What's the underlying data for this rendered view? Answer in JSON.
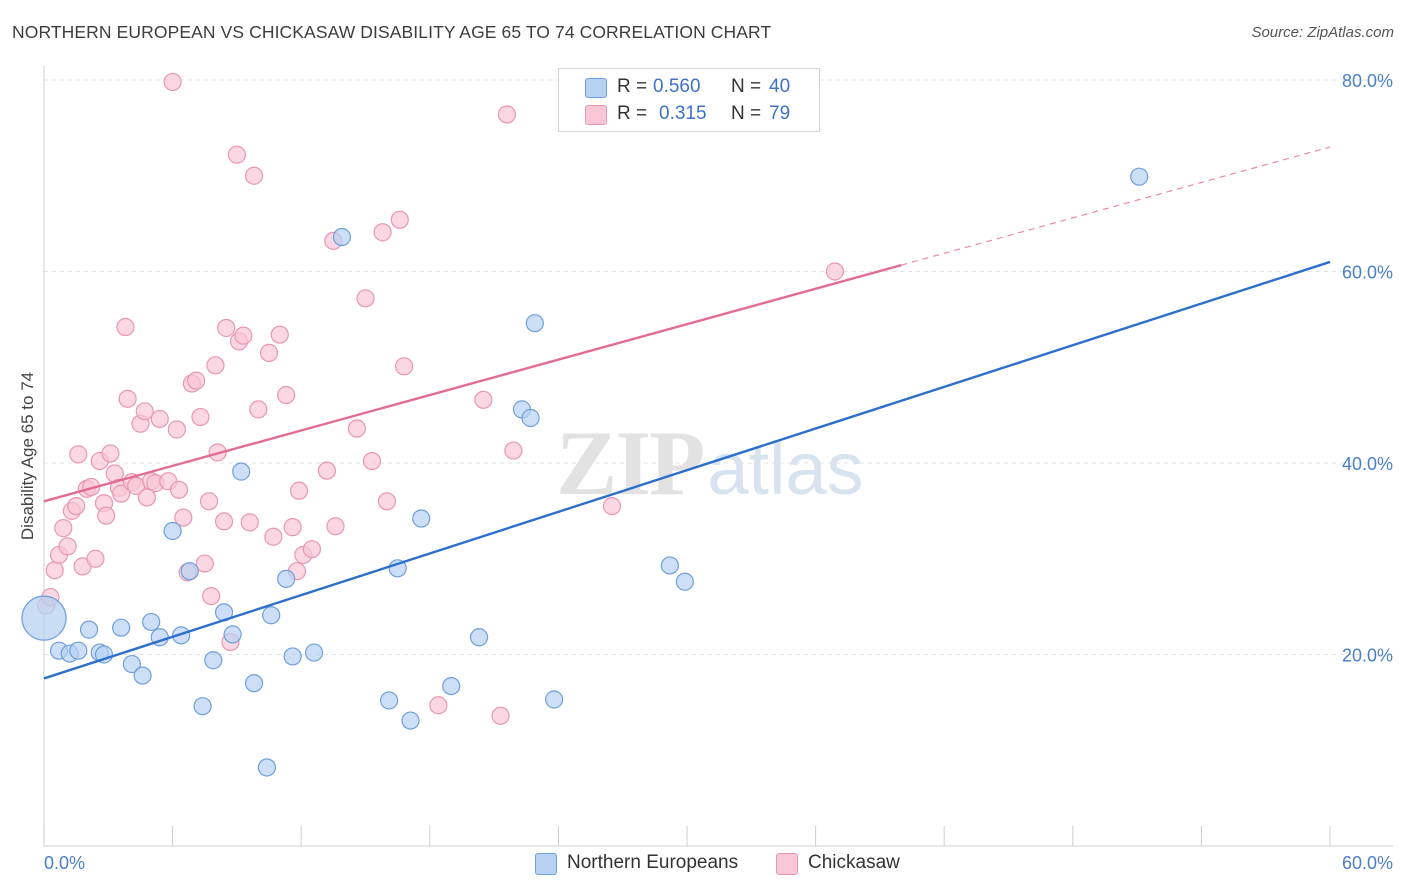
{
  "title": "NORTHERN EUROPEAN VS CHICKASAW DISABILITY AGE 65 TO 74 CORRELATION CHART",
  "source": "Source: ZipAtlas.com",
  "watermark": "ZIPatlas",
  "legend_top": {
    "rows": [
      {
        "r_label": "R =",
        "r_value": "0.560",
        "n_label": "N =",
        "n_value": "40"
      },
      {
        "r_label": "R =",
        "r_value": "0.315",
        "n_label": "N =",
        "n_value": "79"
      }
    ]
  },
  "legend_bottom": [
    "Northern Europeans",
    "Chickasaw"
  ],
  "colors": {
    "blue_fill": "#b7d1f2",
    "blue_stroke": "#6f9fdc",
    "blue_line": "#2c6fcc",
    "pink_fill": "#f8c6d5",
    "pink_stroke": "#e996b2",
    "pink_line": "#e26c93",
    "tick_text": "#4a7fc8",
    "grid": "#e3e3e3"
  },
  "chart_data": {
    "type": "scatter",
    "title": "NORTHERN EUROPEAN VS CHICKASAW DISABILITY AGE 65 TO 74 CORRELATION CHART",
    "xlabel": "",
    "ylabel": "Disability Age 65 to 74",
    "xlim": [
      0,
      60
    ],
    "ylim": [
      0,
      80
    ],
    "x_tick_labels": [
      "0.0%",
      "60.0%"
    ],
    "y_ticks": [
      20,
      40,
      60,
      80
    ],
    "y_tick_labels": [
      "20.0%",
      "40.0%",
      "60.0%",
      "80.0%"
    ],
    "grid": true,
    "series": [
      {
        "name": "Northern Europeans",
        "r": 0.56,
        "n": 40,
        "trend": {
          "x": [
            0,
            60
          ],
          "y": [
            17.5,
            61.0
          ],
          "solid_until": 60
        },
        "points": [
          [
            0.0,
            23.8
          ],
          [
            0.7,
            20.4
          ],
          [
            1.2,
            20.1
          ],
          [
            1.6,
            20.4
          ],
          [
            2.1,
            22.6
          ],
          [
            2.6,
            20.2
          ],
          [
            2.8,
            20.0
          ],
          [
            3.6,
            22.8
          ],
          [
            4.1,
            19.0
          ],
          [
            4.6,
            17.8
          ],
          [
            5.0,
            23.4
          ],
          [
            5.4,
            21.8
          ],
          [
            6.0,
            32.9
          ],
          [
            6.4,
            22.0
          ],
          [
            6.8,
            28.7
          ],
          [
            7.4,
            14.6
          ],
          [
            7.9,
            19.4
          ],
          [
            8.4,
            24.4
          ],
          [
            8.8,
            22.1
          ],
          [
            9.2,
            39.1
          ],
          [
            9.8,
            17.0
          ],
          [
            10.4,
            8.2
          ],
          [
            10.6,
            24.1
          ],
          [
            11.3,
            27.9
          ],
          [
            11.6,
            19.8
          ],
          [
            12.6,
            20.2
          ],
          [
            13.9,
            63.6
          ],
          [
            16.1,
            15.2
          ],
          [
            16.5,
            29.0
          ],
          [
            17.1,
            13.1
          ],
          [
            17.6,
            34.2
          ],
          [
            19.0,
            16.7
          ],
          [
            20.3,
            21.8
          ],
          [
            22.3,
            45.6
          ],
          [
            22.7,
            44.7
          ],
          [
            22.9,
            54.6
          ],
          [
            23.8,
            15.3
          ],
          [
            29.2,
            29.3
          ],
          [
            29.9,
            27.6
          ],
          [
            51.1,
            69.9
          ]
        ]
      },
      {
        "name": "Chickasaw",
        "r": 0.315,
        "n": 79,
        "trend": {
          "x": [
            0,
            60
          ],
          "y": [
            36.0,
            73.0
          ],
          "solid_until": 40
        },
        "points": [
          [
            0.1,
            25.1
          ],
          [
            0.3,
            26.0
          ],
          [
            0.5,
            28.8
          ],
          [
            0.7,
            30.4
          ],
          [
            0.9,
            33.2
          ],
          [
            1.1,
            31.3
          ],
          [
            1.3,
            35.0
          ],
          [
            1.5,
            35.5
          ],
          [
            1.6,
            40.9
          ],
          [
            1.8,
            29.2
          ],
          [
            2.0,
            37.3
          ],
          [
            2.2,
            37.5
          ],
          [
            2.4,
            30.0
          ],
          [
            2.6,
            40.2
          ],
          [
            2.8,
            35.8
          ],
          [
            2.9,
            34.5
          ],
          [
            3.1,
            41.0
          ],
          [
            3.3,
            38.9
          ],
          [
            3.5,
            37.4
          ],
          [
            3.6,
            36.8
          ],
          [
            3.8,
            54.2
          ],
          [
            3.9,
            46.7
          ],
          [
            4.1,
            38.0
          ],
          [
            4.3,
            37.6
          ],
          [
            4.5,
            44.1
          ],
          [
            4.7,
            45.4
          ],
          [
            4.8,
            36.4
          ],
          [
            5.0,
            38.1
          ],
          [
            5.2,
            37.9
          ],
          [
            5.4,
            44.6
          ],
          [
            5.8,
            38.1
          ],
          [
            6.0,
            79.8
          ],
          [
            6.2,
            43.5
          ],
          [
            6.3,
            37.2
          ],
          [
            6.5,
            34.3
          ],
          [
            6.7,
            28.6
          ],
          [
            6.9,
            48.3
          ],
          [
            7.1,
            48.6
          ],
          [
            7.3,
            44.8
          ],
          [
            7.5,
            29.5
          ],
          [
            7.7,
            36.0
          ],
          [
            7.8,
            26.1
          ],
          [
            8.0,
            50.2
          ],
          [
            8.1,
            41.1
          ],
          [
            8.4,
            33.9
          ],
          [
            8.5,
            54.1
          ],
          [
            8.7,
            21.3
          ],
          [
            9.0,
            72.2
          ],
          [
            9.1,
            52.7
          ],
          [
            9.3,
            53.3
          ],
          [
            9.6,
            33.8
          ],
          [
            9.8,
            70.0
          ],
          [
            10.0,
            45.6
          ],
          [
            10.5,
            51.5
          ],
          [
            10.7,
            32.3
          ],
          [
            11.0,
            53.4
          ],
          [
            11.3,
            47.1
          ],
          [
            11.6,
            33.3
          ],
          [
            11.8,
            28.7
          ],
          [
            11.9,
            37.1
          ],
          [
            12.1,
            30.4
          ],
          [
            12.5,
            31.0
          ],
          [
            13.2,
            39.2
          ],
          [
            13.5,
            63.2
          ],
          [
            13.6,
            33.4
          ],
          [
            14.6,
            43.6
          ],
          [
            15.0,
            57.2
          ],
          [
            15.3,
            40.2
          ],
          [
            15.8,
            64.1
          ],
          [
            16.0,
            36.0
          ],
          [
            16.6,
            65.4
          ],
          [
            16.8,
            50.1
          ],
          [
            18.4,
            14.7
          ],
          [
            20.5,
            46.6
          ],
          [
            21.3,
            13.6
          ],
          [
            21.6,
            76.4
          ],
          [
            21.9,
            41.3
          ],
          [
            26.1,
            76.4
          ],
          [
            26.5,
            35.5
          ],
          [
            36.9,
            60.0
          ]
        ]
      }
    ]
  }
}
